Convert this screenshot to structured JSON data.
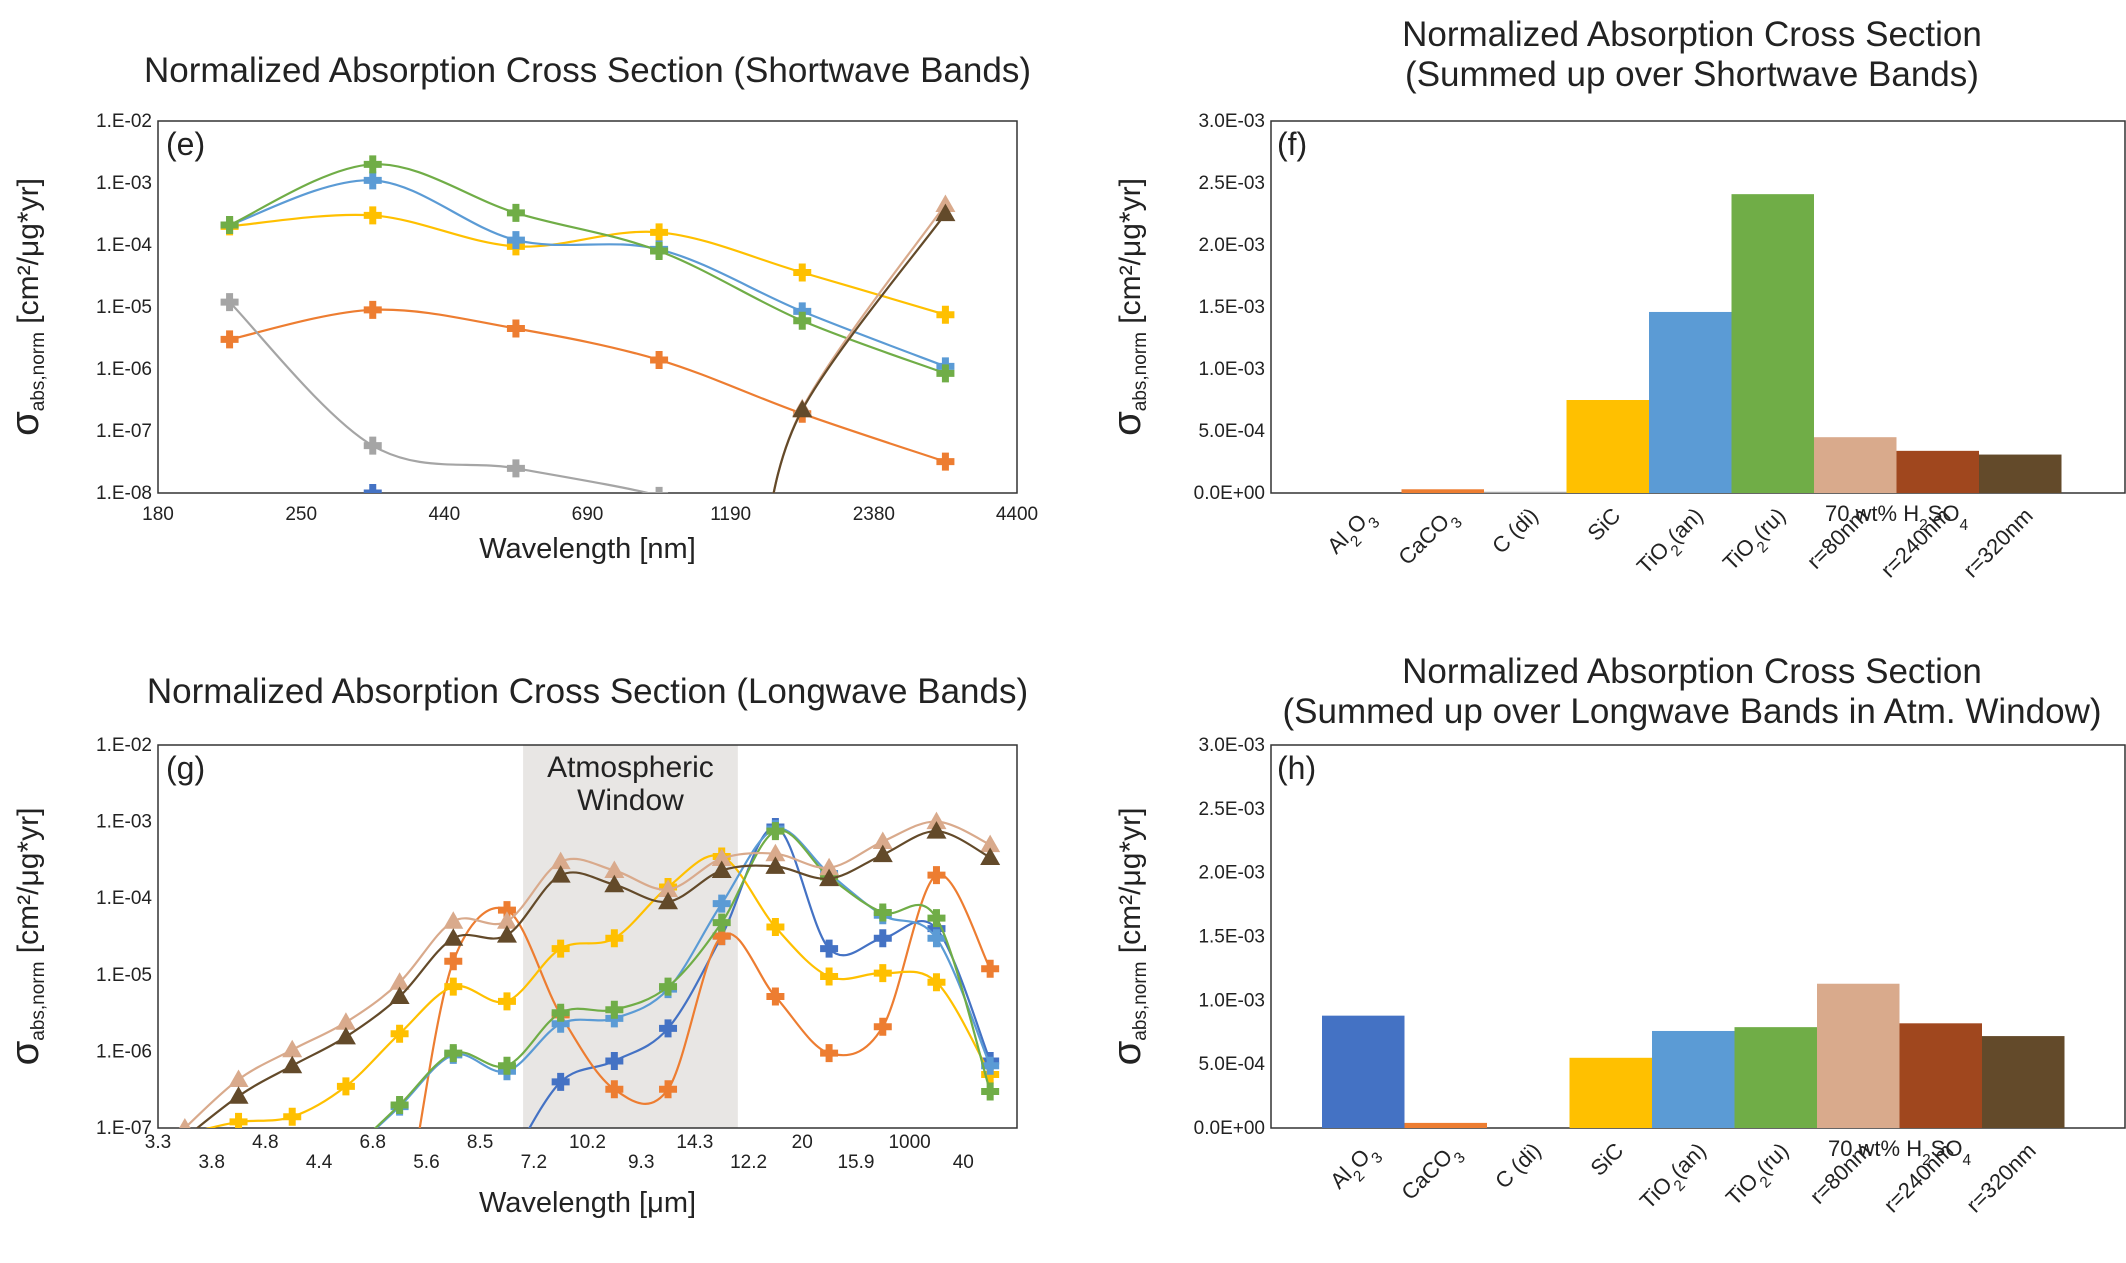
{
  "figure": {
    "colors": {
      "Al2O3": "#4472c4",
      "CaCO3": "#ed7d31",
      "C (di)": "#a5a5a5",
      "SiC": "#ffc000",
      "TiO2(an)": "#5b9bd5",
      "TiO2(ru)": "#70ad47",
      "r=80nm": "#d9aa8c",
      "r=240nm": "#a0471e",
      "r=320nm": "#634a2a",
      "window": "#e8e6e4"
    }
  },
  "chart_data": [
    {
      "id": "e",
      "panel_label": "(e)",
      "type": "line",
      "title": "Normalized Absorption Cross Section (Shortwave Bands)",
      "xlabel": "Wavelength [nm]",
      "ylabel_main": "σ",
      "ylabel_sub": "abs,norm",
      "ylabel_units": "[cm²/μg*yr]",
      "x_tick_labels": [
        "180",
        "250",
        "440",
        "690",
        "1190",
        "2380",
        "4400"
      ],
      "yscale": "log",
      "ylim": [
        1e-08,
        0.01
      ],
      "y_tick_labels": [
        "1.E-08",
        "1.E-07",
        "1.E-06",
        "1.E-05",
        "1.E-04",
        "1.E-03",
        "1.E-02"
      ],
      "x_band_positions": [
        0.5,
        1.5,
        2.5,
        3.5,
        4.5,
        5.5
      ],
      "series": [
        {
          "name": "Al2O3",
          "marker": "plus",
          "values": [
            null,
            1e-08,
            null,
            null,
            null,
            null
          ]
        },
        {
          "name": "CaCO3",
          "marker": "plus",
          "values": [
            3e-06,
            9e-06,
            4.5e-06,
            1.4e-06,
            1.9e-07,
            3.2e-08
          ]
        },
        {
          "name": "C (di)",
          "marker": "plus",
          "values": [
            1.2e-05,
            5.8e-08,
            2.5e-08,
            9e-09,
            null,
            null
          ]
        },
        {
          "name": "SiC",
          "marker": "plus",
          "values": [
            0.0002,
            0.0003,
            9.5e-05,
            0.00016,
            3.6e-05,
            7.5e-06
          ]
        },
        {
          "name": "TiO2(an)",
          "marker": "plus",
          "values": [
            0.00021,
            0.0011,
            0.00012,
            8.5e-05,
            8.5e-06,
            1.1e-06
          ]
        },
        {
          "name": "TiO2(ru)",
          "marker": "plus",
          "values": [
            0.00021,
            0.002,
            0.00033,
            8e-05,
            6e-06,
            8.5e-07
          ]
        },
        {
          "name": "r=80nm",
          "marker": "triangle",
          "values": [
            null,
            null,
            null,
            null,
            2.3e-07,
            0.00045
          ]
        },
        {
          "name": "r=320nm",
          "marker": "triangle",
          "values": [
            null,
            null,
            null,
            null,
            2.2e-07,
            0.00032
          ]
        }
      ]
    },
    {
      "id": "f",
      "panel_label": "(f)",
      "type": "bar",
      "title_lines": [
        "Normalized Absorption Cross Section",
        "(Summed up over Shortwave Bands)"
      ],
      "ylabel_main": "σ",
      "ylabel_sub": "abs,norm",
      "ylabel_units": "[cm²/μg*yr]",
      "ylim": [
        0,
        0.003
      ],
      "y_tick_labels": [
        "0.0E+00",
        "5.0E-04",
        "1.0E-03",
        "1.5E-03",
        "2.0E-03",
        "2.5E-03",
        "3.0E-03"
      ],
      "categories": [
        "Al2O3",
        "CaCO3",
        "C (di)",
        "SiC",
        "TiO2(an)",
        "TiO2(ru)",
        "r=80nm",
        "r=240nm",
        "r=320nm"
      ],
      "values": [
        0,
        3e-05,
        1e-05,
        0.00075,
        0.00146,
        0.00241,
        0.00045,
        0.00034,
        0.00031
      ],
      "group_label": "70 wt% H₂SO₄"
    },
    {
      "id": "g",
      "panel_label": "(g)",
      "type": "line",
      "title": "Normalized Absorption Cross Section (Longwave Bands)",
      "xlabel": "Wavelength [μm]",
      "ylabel_main": "σ",
      "ylabel_sub": "abs,norm",
      "ylabel_units": "[cm²/μg*yr]",
      "x_tick_labels_upper": [
        "3.3",
        "4.8",
        "6.8",
        "8.5",
        "10.2",
        "14.3",
        "20",
        "1000"
      ],
      "x_tick_labels_lower": [
        "3.8",
        "4.4",
        "5.6",
        "7.2",
        "9.3",
        "12.2",
        "15.9",
        "40"
      ],
      "yscale": "log",
      "ylim": [
        1e-07,
        0.01
      ],
      "y_tick_labels": [
        "1.E-07",
        "1.E-06",
        "1.E-05",
        "1.E-04",
        "1.E-03",
        "1.E-02"
      ],
      "window_label_lines": [
        "Atmospheric",
        "Window"
      ],
      "window_band_range": [
        8.5,
        14.3
      ],
      "x_band_positions": [
        0.5,
        1.5,
        2.5,
        3.5,
        4.5,
        5.5,
        6.5,
        7.5,
        8.5,
        9.5,
        10.5,
        11.5,
        12.5,
        13.5,
        14.5,
        15.5
      ],
      "series": [
        {
          "name": "Al2O3",
          "marker": "plus",
          "values": [
            null,
            null,
            null,
            null,
            null,
            null,
            null,
            4e-07,
            7.5e-07,
            2e-06,
            3.2e-05,
            0.00085,
            2.2e-05,
            3e-05,
            4e-05,
            7.5e-07
          ]
        },
        {
          "name": "CaCO3",
          "marker": "plus",
          "values": [
            null,
            null,
            null,
            null,
            null,
            1.5e-05,
            7e-05,
            3e-06,
            3.2e-07,
            3.2e-07,
            3.2e-05,
            5.2e-06,
            9.5e-07,
            2.1e-06,
            0.0002,
            1.2e-05
          ]
        },
        {
          "name": "SiC",
          "marker": "plus",
          "values": [
            null,
            1.2e-07,
            1.4e-07,
            3.5e-07,
            1.7e-06,
            7e-06,
            4.5e-06,
            2.2e-05,
            3e-05,
            0.00014,
            0.00035,
            4.2e-05,
            9.5e-06,
            1.05e-05,
            8e-06,
            5e-07
          ]
        },
        {
          "name": "TiO2(an)",
          "marker": "plus",
          "values": [
            null,
            null,
            null,
            null,
            1.9e-07,
            9e-07,
            5.5e-07,
            2.3e-06,
            2.7e-06,
            6.5e-06,
            8.5e-05,
            0.0008,
            0.00021,
            6e-05,
            3e-05,
            6.5e-07
          ]
        },
        {
          "name": "TiO2(ru)",
          "marker": "plus",
          "values": [
            null,
            null,
            null,
            null,
            2e-07,
            9.5e-07,
            6.5e-07,
            3.2e-06,
            3.5e-06,
            7e-06,
            4.8e-05,
            0.00075,
            0.00019,
            6.5e-05,
            5.5e-05,
            3e-07
          ]
        },
        {
          "name": "r=80nm",
          "marker": "triangle",
          "values": [
            1e-07,
            4.3e-07,
            1.05e-06,
            2.4e-06,
            8e-06,
            5e-05,
            5e-05,
            0.0003,
            0.00023,
            0.00013,
            0.00033,
            0.00038,
            0.00025,
            0.00055,
            0.001,
            0.0005
          ]
        },
        {
          "name": "r=320nm",
          "marker": "triangle",
          "values": [
            null,
            2.6e-07,
            6.5e-07,
            1.55e-06,
            5.2e-06,
            3e-05,
            3.3e-05,
            0.0002,
            0.00015,
            9e-05,
            0.00023,
            0.00026,
            0.00018,
            0.00037,
            0.00075,
            0.00034
          ]
        }
      ]
    },
    {
      "id": "h",
      "panel_label": "(h)",
      "type": "bar",
      "title_lines": [
        "Normalized Absorption Cross Section",
        "(Summed up over Longwave Bands in Atm. Window)"
      ],
      "ylabel_main": "σ",
      "ylabel_sub": "abs,norm",
      "ylabel_units": "[cm²/μg*yr]",
      "ylim": [
        0,
        0.003
      ],
      "y_tick_labels": [
        "0.0E+00",
        "5.0E-04",
        "1.0E-03",
        "1.5E-03",
        "2.0E-03",
        "2.5E-03",
        "3.0E-03"
      ],
      "categories": [
        "Al2O3",
        "CaCO3",
        "C (di)",
        "SiC",
        "TiO2(an)",
        "TiO2(ru)",
        "r=80nm",
        "r=240nm",
        "r=320nm"
      ],
      "values": [
        0.00088,
        4e-05,
        0,
        0.00055,
        0.00076,
        0.00079,
        0.00113,
        0.00082,
        0.00072
      ],
      "group_label": "70 wt% H₂SO₄"
    }
  ]
}
